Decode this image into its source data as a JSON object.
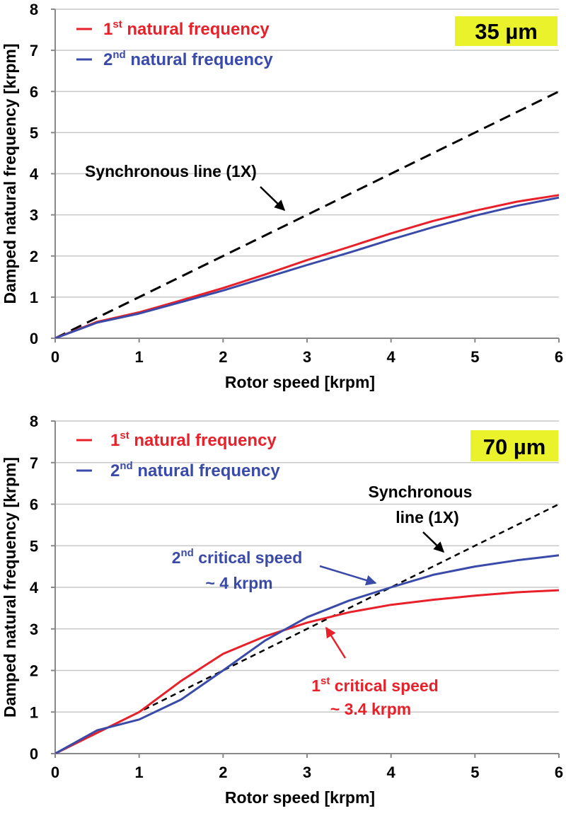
{
  "chart_data": [
    {
      "type": "line",
      "badge": "35 µm",
      "xlabel": "Rotor speed [krpm]",
      "ylabel": "Damped natural frequency [krpm]",
      "xlim": [
        0,
        6
      ],
      "ylim": [
        0,
        8
      ],
      "xticks": [
        "0",
        "1",
        "2",
        "3",
        "4",
        "5",
        "6"
      ],
      "yticks": [
        "0",
        "1",
        "2",
        "3",
        "4",
        "5",
        "6",
        "7",
        "8"
      ],
      "grid": "horizontal",
      "legend_position": "top-left",
      "colors": {
        "first": "#e8202a",
        "second": "#3a4aa8",
        "sync": "#000000",
        "badge": "#eaf22c"
      },
      "series": [
        {
          "name_num": "1",
          "name_sup": "st",
          "name_text": "natural frequency",
          "color": "#e8202a",
          "x": [
            0,
            0.5,
            1,
            1.5,
            2,
            2.5,
            3,
            3.5,
            4,
            4.5,
            5,
            5.5,
            6
          ],
          "y": [
            0,
            0.4,
            0.63,
            0.92,
            1.22,
            1.55,
            1.9,
            2.22,
            2.55,
            2.85,
            3.1,
            3.32,
            3.48
          ]
        },
        {
          "name_num": "2",
          "name_sup": "nd",
          "name_text": "natural frequency",
          "color": "#3a4aa8",
          "x": [
            0,
            0.5,
            1,
            1.5,
            2,
            2.5,
            3,
            3.5,
            4,
            4.5,
            5,
            5.5,
            6
          ],
          "y": [
            0,
            0.38,
            0.6,
            0.88,
            1.16,
            1.47,
            1.78,
            2.08,
            2.4,
            2.7,
            2.98,
            3.22,
            3.42
          ]
        }
      ],
      "sync_line": {
        "x": [
          0,
          6
        ],
        "y": [
          0,
          6
        ]
      },
      "annotations": [
        {
          "id": "sync",
          "lines": [
            "Synchronous  line (1X)"
          ],
          "color": "#000000"
        }
      ]
    },
    {
      "type": "line",
      "badge": "70 µm",
      "xlabel": "Rotor speed [krpm]",
      "ylabel": "Damped natural frequency [krpm]",
      "xlim": [
        0,
        6
      ],
      "ylim": [
        0,
        8
      ],
      "xticks": [
        "0",
        "1",
        "2",
        "3",
        "4",
        "5",
        "6"
      ],
      "yticks": [
        "0",
        "1",
        "2",
        "3",
        "4",
        "5",
        "6",
        "7",
        "8"
      ],
      "grid": "horizontal",
      "legend_position": "top-left",
      "colors": {
        "first": "#e8202a",
        "second": "#3a4aa8",
        "sync": "#000000",
        "badge": "#eaf22c"
      },
      "series": [
        {
          "name_num": "1",
          "name_sup": "st",
          "name_text": "natural frequency",
          "color": "#e8202a",
          "x": [
            0,
            0.5,
            1,
            1.5,
            2,
            2.5,
            3,
            3.5,
            4,
            4.5,
            5,
            5.5,
            6
          ],
          "y": [
            0,
            0.5,
            1.0,
            1.75,
            2.4,
            2.82,
            3.15,
            3.4,
            3.58,
            3.7,
            3.8,
            3.88,
            3.93
          ]
        },
        {
          "name_num": "2",
          "name_sup": "nd",
          "name_text": "natural frequency",
          "color": "#3a4aa8",
          "x": [
            0,
            0.5,
            1,
            1.5,
            2,
            2.5,
            3,
            3.5,
            4,
            4.5,
            5,
            5.5,
            6
          ],
          "y": [
            0,
            0.56,
            0.82,
            1.3,
            2.0,
            2.72,
            3.28,
            3.68,
            4.0,
            4.3,
            4.5,
            4.65,
            4.77
          ]
        }
      ],
      "sync_line": {
        "x": [
          0,
          6
        ],
        "y": [
          0,
          6
        ]
      },
      "annotations": [
        {
          "id": "sync",
          "lines": [
            "Synchronous",
            "line (1X)"
          ],
          "color": "#000000"
        },
        {
          "id": "second",
          "lines_sup": [
            {
              "num": "2",
              "sup": "nd",
              "text": "critical speed"
            }
          ],
          "lines": [
            "~ 4 krpm"
          ],
          "color": "#3a4aa8"
        },
        {
          "id": "first",
          "lines_sup": [
            {
              "num": "1",
              "sup": "st",
              "text": "critical speed"
            }
          ],
          "lines": [
            "~ 3.4 krpm"
          ],
          "color": "#e8202a"
        }
      ]
    }
  ]
}
